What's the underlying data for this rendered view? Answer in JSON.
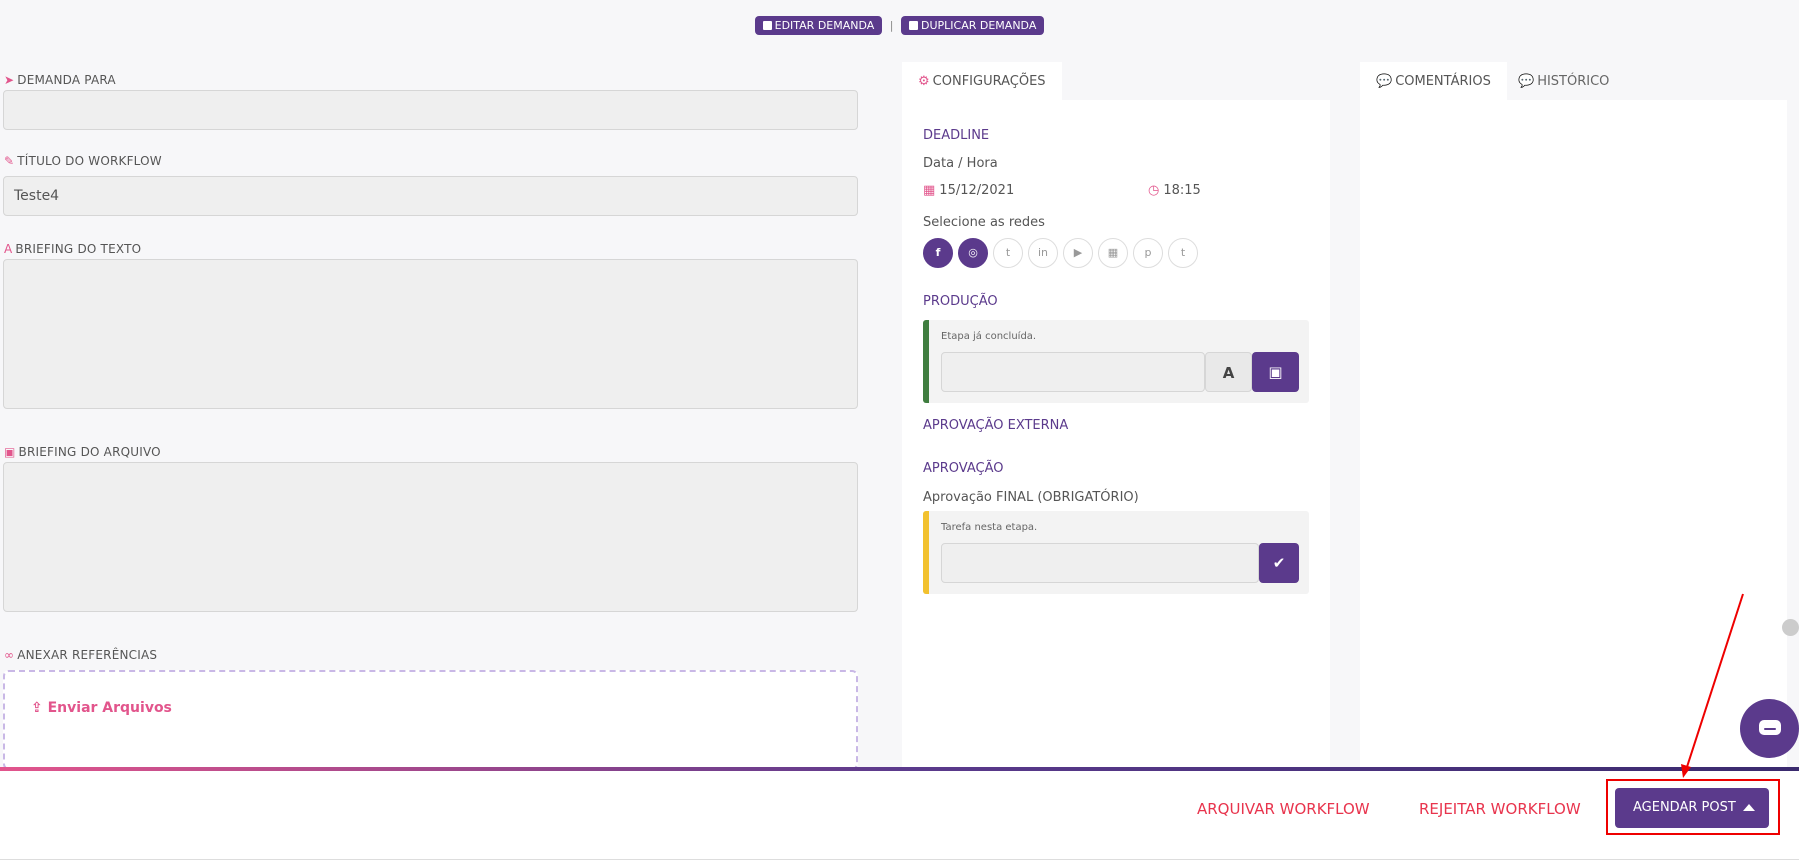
{
  "top_actions": {
    "edit_label": "EDITAR DEMANDA",
    "duplicate_label": "DUPLICAR DEMANDA",
    "separator": "|"
  },
  "form": {
    "demand_for_label": "DEMANDA PARA",
    "demand_for_value": "",
    "workflow_title_label": "TÍTULO DO WORKFLOW",
    "workflow_title_value": "Teste4",
    "text_briefing_label": "BRIEFING DO TEXTO",
    "text_briefing_value": "",
    "file_briefing_label": "BRIEFING DO ARQUIVO",
    "file_briefing_value": "",
    "attach_label": "ANEXAR REFERÊNCIAS",
    "upload_label": "Enviar Arquivos"
  },
  "config": {
    "tab_label": "CONFIGURAÇÕES",
    "deadline_label": "DEADLINE",
    "datetime_label": "Data / Hora",
    "date_value": "15/12/2021",
    "time_value": "18:15",
    "networks_label": "Selecione as redes",
    "networks": [
      {
        "icon": "facebook-icon",
        "glyph": "f",
        "selected": true
      },
      {
        "icon": "instagram-icon",
        "glyph": "◎",
        "selected": true
      },
      {
        "icon": "twitter-icon",
        "glyph": "t",
        "selected": false
      },
      {
        "icon": "linkedin-icon",
        "glyph": "in",
        "selected": false
      },
      {
        "icon": "youtube-icon",
        "glyph": "▶",
        "selected": false
      },
      {
        "icon": "google-my-business-icon",
        "glyph": "▦",
        "selected": false
      },
      {
        "icon": "pinterest-icon",
        "glyph": "p",
        "selected": false
      },
      {
        "icon": "tumblr-icon",
        "glyph": "t",
        "selected": false
      }
    ],
    "production_label": "PRODUÇÃO",
    "production_note": "Etapa já concluída.",
    "production_text_btn": "A",
    "external_approval_label": "APROVAÇÃO EXTERNA",
    "approval_label": "APROVAÇÃO",
    "final_approval_label": "Aprovação FINAL (OBRIGATÓRIO)",
    "approval_note": "Tarefa nesta etapa."
  },
  "side": {
    "comments_tab": "COMENTÁRIOS",
    "history_tab": "HISTÓRICO"
  },
  "footer": {
    "archive_label": "ARQUIVAR WORKFLOW",
    "reject_label": "REJEITAR WORKFLOW",
    "schedule_label": "AGENDAR POST"
  },
  "colors": {
    "brand_purple": "#5b3a8c",
    "accent_pink": "#e2558c",
    "danger_red": "#e8344d",
    "production_bar": "#3f7d3f",
    "approval_bar": "#f2c12e"
  }
}
